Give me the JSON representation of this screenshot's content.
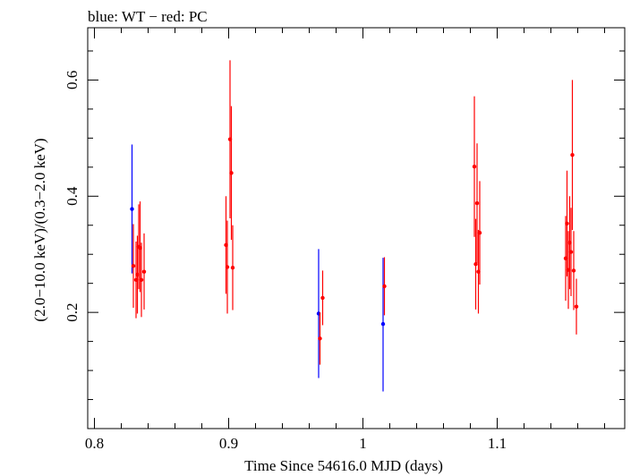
{
  "chart_data": {
    "type": "scatter",
    "title": "blue: WT − red: PC",
    "xlabel": "Time Since 54616.0 MJD (days)",
    "ylabel": "(2.0−10.0 keV)/(0.3−2.0 keV)",
    "xlim": [
      0.795,
      1.195
    ],
    "ylim": [
      0.0,
      0.69
    ],
    "x_ticks": [
      0.8,
      0.9,
      1.0,
      1.1
    ],
    "x_tick_labels": [
      "0.8",
      "0.9",
      "1",
      "1.1"
    ],
    "y_ticks": [
      0.2,
      0.4,
      0.6
    ],
    "y_tick_labels": [
      "0.2",
      "0.4",
      "0.6"
    ],
    "grid": false,
    "series": [
      {
        "name": "WT",
        "color": "#0000ff",
        "points": [
          {
            "x": 0.828,
            "y": 0.378,
            "ylo": 0.267,
            "yhi": 0.489
          },
          {
            "x": 0.967,
            "y": 0.198,
            "ylo": 0.087,
            "yhi": 0.309
          },
          {
            "x": 1.015,
            "y": 0.18,
            "ylo": 0.064,
            "yhi": 0.294
          }
        ]
      },
      {
        "name": "PC",
        "color": "#ff0000",
        "points": [
          {
            "x": 0.829,
            "y": 0.28,
            "ylo": 0.208,
            "yhi": 0.352
          },
          {
            "x": 0.831,
            "y": 0.256,
            "ylo": 0.19,
            "yhi": 0.322
          },
          {
            "x": 0.832,
            "y": 0.265,
            "ylo": 0.198,
            "yhi": 0.332
          },
          {
            "x": 0.833,
            "y": 0.313,
            "ylo": 0.24,
            "yhi": 0.386
          },
          {
            "x": 0.834,
            "y": 0.311,
            "ylo": 0.235,
            "yhi": 0.391
          },
          {
            "x": 0.835,
            "y": 0.256,
            "ylo": 0.192,
            "yhi": 0.32
          },
          {
            "x": 0.837,
            "y": 0.27,
            "ylo": 0.205,
            "yhi": 0.336
          },
          {
            "x": 0.898,
            "y": 0.316,
            "ylo": 0.232,
            "yhi": 0.4
          },
          {
            "x": 0.899,
            "y": 0.278,
            "ylo": 0.198,
            "yhi": 0.358
          },
          {
            "x": 0.901,
            "y": 0.498,
            "ylo": 0.362,
            "yhi": 0.634
          },
          {
            "x": 0.902,
            "y": 0.44,
            "ylo": 0.325,
            "yhi": 0.555
          },
          {
            "x": 0.903,
            "y": 0.277,
            "ylo": 0.204,
            "yhi": 0.35
          },
          {
            "x": 0.968,
            "y": 0.155,
            "ylo": 0.11,
            "yhi": 0.2
          },
          {
            "x": 0.97,
            "y": 0.225,
            "ylo": 0.178,
            "yhi": 0.272
          },
          {
            "x": 1.016,
            "y": 0.245,
            "ylo": 0.195,
            "yhi": 0.295
          },
          {
            "x": 1.083,
            "y": 0.451,
            "ylo": 0.33,
            "yhi": 0.572
          },
          {
            "x": 1.084,
            "y": 0.283,
            "ylo": 0.205,
            "yhi": 0.361
          },
          {
            "x": 1.085,
            "y": 0.388,
            "ylo": 0.285,
            "yhi": 0.491
          },
          {
            "x": 1.086,
            "y": 0.27,
            "ylo": 0.198,
            "yhi": 0.342
          },
          {
            "x": 1.087,
            "y": 0.337,
            "ylo": 0.248,
            "yhi": 0.426
          },
          {
            "x": 1.151,
            "y": 0.293,
            "ylo": 0.22,
            "yhi": 0.366
          },
          {
            "x": 1.152,
            "y": 0.353,
            "ylo": 0.262,
            "yhi": 0.444
          },
          {
            "x": 1.153,
            "y": 0.273,
            "ylo": 0.206,
            "yhi": 0.34
          },
          {
            "x": 1.154,
            "y": 0.32,
            "ylo": 0.24,
            "yhi": 0.4
          },
          {
            "x": 1.155,
            "y": 0.304,
            "ylo": 0.228,
            "yhi": 0.38
          },
          {
            "x": 1.156,
            "y": 0.471,
            "ylo": 0.342,
            "yhi": 0.6
          },
          {
            "x": 1.157,
            "y": 0.272,
            "ylo": 0.204,
            "yhi": 0.34
          },
          {
            "x": 1.159,
            "y": 0.21,
            "ylo": 0.162,
            "yhi": 0.258
          }
        ]
      }
    ]
  }
}
